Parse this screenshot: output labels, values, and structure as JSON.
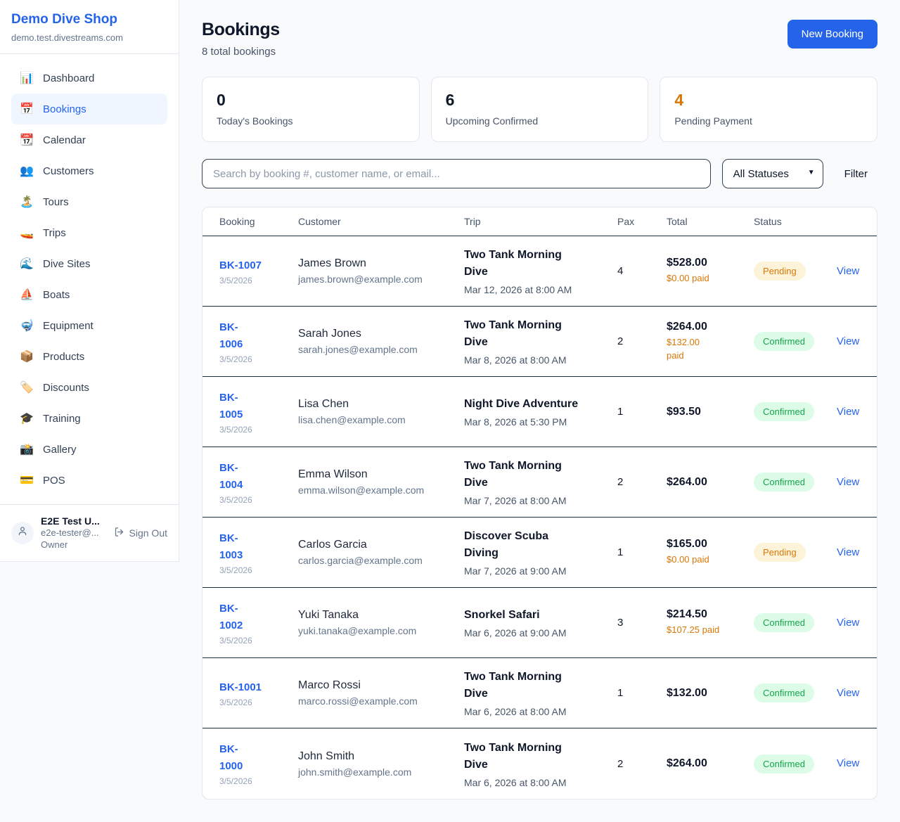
{
  "colors": {
    "accent_blue": "#2563eb",
    "pending_orange": "#d97706",
    "confirmed_green": "#16a34a",
    "page_background": "#f8fafc"
  },
  "sidebar": {
    "brand": "Demo Dive Shop",
    "domain": "demo.test.divestreams.com",
    "items": [
      {
        "slug": "dashboard",
        "icon": "📊",
        "label": "Dashboard",
        "active": false
      },
      {
        "slug": "bookings",
        "icon": "📅",
        "label": "Bookings",
        "active": true
      },
      {
        "slug": "calendar",
        "icon": "📆",
        "label": "Calendar",
        "active": false
      },
      {
        "slug": "customers",
        "icon": "👥",
        "label": "Customers",
        "active": false
      },
      {
        "slug": "tours",
        "icon": "🏝️",
        "label": "Tours",
        "active": false
      },
      {
        "slug": "trips",
        "icon": "🚤",
        "label": "Trips",
        "active": false
      },
      {
        "slug": "dive-sites",
        "icon": "🌊",
        "label": "Dive Sites",
        "active": false
      },
      {
        "slug": "boats",
        "icon": "⛵",
        "label": "Boats",
        "active": false
      },
      {
        "slug": "equipment",
        "icon": "🤿",
        "label": "Equipment",
        "active": false
      },
      {
        "slug": "products",
        "icon": "📦",
        "label": "Products",
        "active": false
      },
      {
        "slug": "discounts",
        "icon": "🏷️",
        "label": "Discounts",
        "active": false
      },
      {
        "slug": "training",
        "icon": "🎓",
        "label": "Training",
        "active": false
      },
      {
        "slug": "gallery",
        "icon": "📸",
        "label": "Gallery",
        "active": false
      },
      {
        "slug": "pos",
        "icon": "💳",
        "label": "POS",
        "active": false
      }
    ],
    "user": {
      "name": "E2E Test U...",
      "email": "e2e-tester@...",
      "role": "Owner",
      "sign_out_label": "Sign Out"
    }
  },
  "header": {
    "title": "Bookings",
    "subtitle": "8 total bookings",
    "new_booking_label": "New Booking"
  },
  "stats": [
    {
      "value": "0",
      "label": "Today's Bookings",
      "value_color": "#0f172a"
    },
    {
      "value": "6",
      "label": "Upcoming Confirmed",
      "value_color": "#0f172a"
    },
    {
      "value": "4",
      "label": "Pending Payment",
      "value_color": "#d97706"
    }
  ],
  "controls": {
    "search_placeholder": "Search by booking #, customer name, or email...",
    "status_filter_value": "All Statuses",
    "filter_label": "Filter"
  },
  "table": {
    "headers": [
      "Booking",
      "Customer",
      "Trip",
      "Pax",
      "Total",
      "Status"
    ],
    "view_label": "View",
    "rows": [
      {
        "id": "BK-1007",
        "date": "3/5/2026",
        "customer": "James Brown",
        "email": "james.brown@example.com",
        "trip": "Two Tank Morning\nDive",
        "trip_date": "Mar 12, 2026 at 8:00 AM",
        "pax": "4",
        "total": "$528.00",
        "paid": "$0.00 paid",
        "status": "Pending"
      },
      {
        "id": "BK-\n1006",
        "date": "3/5/2026",
        "customer": "Sarah Jones",
        "email": "sarah.jones@example.com",
        "trip": "Two Tank Morning\nDive",
        "trip_date": "Mar 8, 2026 at 8:00 AM",
        "pax": "2",
        "total": "$264.00",
        "paid": "$132.00\npaid",
        "status": "Confirmed"
      },
      {
        "id": "BK-\n1005",
        "date": "3/5/2026",
        "customer": "Lisa Chen",
        "email": "lisa.chen@example.com",
        "trip": "Night Dive Adventure",
        "trip_date": "Mar 8, 2026 at 5:30 PM",
        "pax": "1",
        "total": "$93.50",
        "paid": null,
        "status": "Confirmed"
      },
      {
        "id": "BK-\n1004",
        "date": "3/5/2026",
        "customer": "Emma Wilson",
        "email": "emma.wilson@example.com",
        "trip": "Two Tank Morning\nDive",
        "trip_date": "Mar 7, 2026 at 8:00 AM",
        "pax": "2",
        "total": "$264.00",
        "paid": null,
        "status": "Confirmed"
      },
      {
        "id": "BK-\n1003",
        "date": "3/5/2026",
        "customer": "Carlos Garcia",
        "email": "carlos.garcia@example.com",
        "trip": "Discover Scuba\nDiving",
        "trip_date": "Mar 7, 2026 at 9:00 AM",
        "pax": "1",
        "total": "$165.00",
        "paid": "$0.00 paid",
        "status": "Pending"
      },
      {
        "id": "BK-\n1002",
        "date": "3/5/2026",
        "customer": "Yuki Tanaka",
        "email": "yuki.tanaka@example.com",
        "trip": "Snorkel Safari",
        "trip_date": "Mar 6, 2026 at 9:00 AM",
        "pax": "3",
        "total": "$214.50",
        "paid": "$107.25 paid",
        "status": "Confirmed"
      },
      {
        "id": "BK-1001",
        "date": "3/5/2026",
        "customer": "Marco Rossi",
        "email": "marco.rossi@example.com",
        "trip": "Two Tank Morning\nDive",
        "trip_date": "Mar 6, 2026 at 8:00 AM",
        "pax": "1",
        "total": "$132.00",
        "paid": null,
        "status": "Confirmed"
      },
      {
        "id": "BK-\n1000",
        "date": "3/5/2026",
        "customer": "John Smith",
        "email": "john.smith@example.com",
        "trip": "Two Tank Morning\nDive",
        "trip_date": "Mar 6, 2026 at 8:00 AM",
        "pax": "2",
        "total": "$264.00",
        "paid": null,
        "status": "Confirmed"
      }
    ]
  }
}
